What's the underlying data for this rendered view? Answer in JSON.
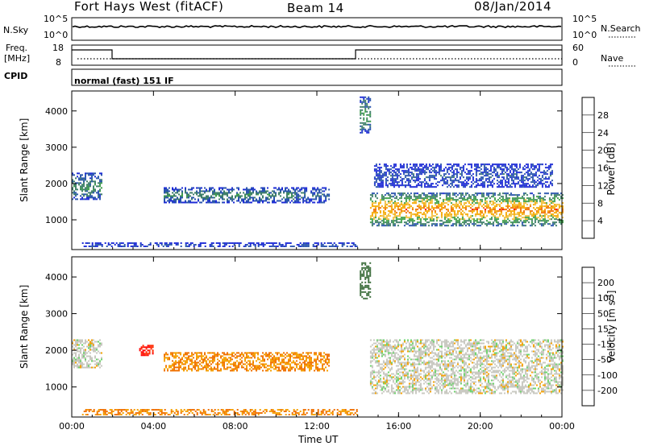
{
  "header": {
    "station": "Fort Hays West (fitACF)",
    "beam": "Beam 14",
    "date": "08/Jan/2014"
  },
  "noise_panel": {
    "left_label": "N.Sky",
    "left_ticks": [
      "10^5",
      "10^0"
    ],
    "right_label": "N.Search",
    "right_ticks": [
      "10^5",
      "10^0"
    ]
  },
  "freq_panel": {
    "left_label_1": "Freq.",
    "left_label_2": "[MHz]",
    "left_ticks": [
      "18",
      "8"
    ],
    "right_label": "Nave",
    "right_ticks": [
      "60",
      "0"
    ]
  },
  "cpid_panel": {
    "label": "CPID",
    "text": "normal (fast) 151 IF"
  },
  "chart_data": [
    {
      "type": "heatmap",
      "panel": "power",
      "ylabel": "Slant Range [km]",
      "xlabel": "",
      "x_ticks": [
        "00:00",
        "04:00",
        "08:00",
        "12:00",
        "16:00",
        "20:00",
        "00:00"
      ],
      "y_ticks": [
        1000,
        2000,
        3000,
        4000
      ],
      "xlim_hours": [
        0,
        24
      ],
      "ylim_km": [
        180,
        4550
      ],
      "colorbar": {
        "label": "Power [dB]",
        "ticks": [
          4,
          8,
          12,
          16,
          20,
          24,
          28
        ],
        "colors": [
          "#1d2bd6",
          "#2a55ad",
          "#3f7f6a",
          "#3fa04a",
          "#f0c040",
          "#f5a800",
          "#f07000",
          "#ff0000"
        ]
      },
      "regions": [
        {
          "name": "early-band",
          "start_h": 0.0,
          "end_h": 1.5,
          "range_km": [
            1550,
            2300
          ],
          "level_db": 12
        },
        {
          "name": "morning-band",
          "start_h": 4.5,
          "end_h": 10.9,
          "range_km": [
            1500,
            1900
          ],
          "level_db": 12
        },
        {
          "name": "noon-band",
          "start_h": 10.9,
          "end_h": 12.6,
          "range_km": [
            1500,
            1900
          ],
          "level_db": 8
        },
        {
          "name": "spike",
          "start_h": 14.1,
          "end_h": 14.6,
          "range_km": [
            3400,
            4400
          ],
          "level_db": 14
        },
        {
          "name": "evening-strong",
          "start_h": 14.6,
          "end_h": 24.0,
          "range_km": [
            850,
            1750
          ],
          "level_db": 26
        },
        {
          "name": "evening-upper",
          "start_h": 14.8,
          "end_h": 23.5,
          "range_km": [
            1900,
            2550
          ],
          "level_db": 6
        },
        {
          "name": "near-range",
          "start_h": 0.5,
          "end_h": 14.0,
          "range_km": [
            250,
            380
          ],
          "level_db": 6
        }
      ]
    },
    {
      "type": "heatmap",
      "panel": "velocity",
      "ylabel": "Slant Range [km]",
      "xlabel": "Time UT",
      "x_ticks": [
        "00:00",
        "04:00",
        "08:00",
        "12:00",
        "16:00",
        "20:00",
        "00:00"
      ],
      "y_ticks": [
        1000,
        2000,
        3000,
        4000
      ],
      "xlim_hours": [
        0,
        24
      ],
      "ylim_km": [
        180,
        4550
      ],
      "colorbar": {
        "label": "Velocity [m s^-1]",
        "ticks": [
          200,
          100,
          50,
          15,
          -15,
          -50,
          -100,
          -200
        ],
        "colors": [
          "#1f3ea8",
          "#3e6f3e",
          "#3fa044",
          "#6ad36a",
          "#c8c8c0",
          "#f5a000",
          "#f07000",
          "#ff2a00",
          "#ff0000"
        ]
      },
      "regions": [
        {
          "name": "early-band",
          "start_h": 0.0,
          "end_h": 1.5,
          "range_km": [
            1550,
            2300
          ],
          "velocity": 0
        },
        {
          "name": "red-blob",
          "start_h": 3.3,
          "end_h": 4.0,
          "range_km": [
            1850,
            2150
          ],
          "velocity": -200
        },
        {
          "name": "morning-band",
          "start_h": 4.5,
          "end_h": 12.6,
          "range_km": [
            1450,
            1950
          ],
          "velocity": -50
        },
        {
          "name": "spike",
          "start_h": 14.1,
          "end_h": 14.6,
          "range_km": [
            3400,
            4400
          ],
          "velocity": 100
        },
        {
          "name": "evening-grey",
          "start_h": 14.6,
          "end_h": 24.0,
          "range_km": [
            850,
            2300
          ],
          "velocity": 0
        },
        {
          "name": "near-range",
          "start_h": 0.5,
          "end_h": 14.0,
          "range_km": [
            250,
            400
          ],
          "velocity": -50
        }
      ]
    }
  ]
}
